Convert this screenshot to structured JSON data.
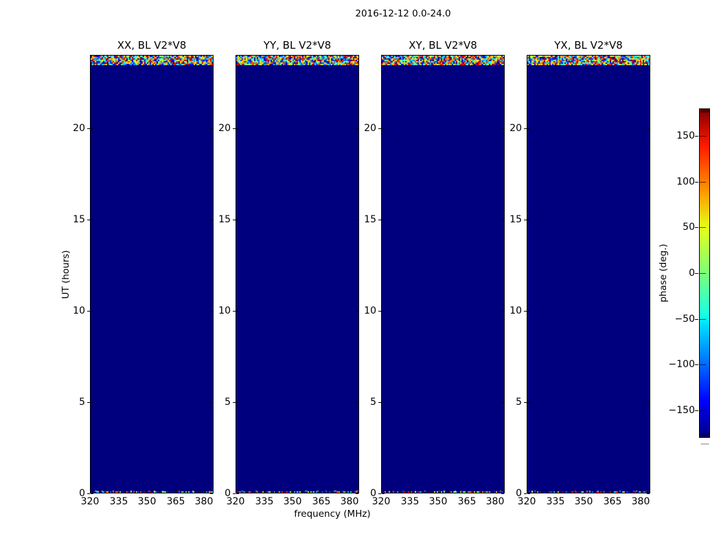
{
  "figure": {
    "suptitle": "2016-12-12 0.0-24.0",
    "background": "#ffffff"
  },
  "chart_data": {
    "type": "heatmap",
    "title": "2016-12-12 0.0-24.0",
    "panels": [
      {
        "title": "XX, BL V2*V8"
      },
      {
        "title": "YY, BL V2*V8"
      },
      {
        "title": "XY, BL V2*V8"
      },
      {
        "title": "YX, BL V2*V8"
      }
    ],
    "xlabel": "frequency (MHz)",
    "ylabel": "UT (hours)",
    "x_range_mhz": [
      320,
      385
    ],
    "x_ticks": [
      {
        "value": 320,
        "label": "320"
      },
      {
        "value": 335,
        "label": "335"
      },
      {
        "value": 350,
        "label": "350"
      },
      {
        "value": 365,
        "label": "365"
      },
      {
        "value": 380,
        "label": "380"
      }
    ],
    "x_minor_step_mhz": 5,
    "y_range_hours": [
      0,
      24
    ],
    "y_ticks": [
      {
        "value": 0,
        "label": "0"
      },
      {
        "value": 5,
        "label": "5"
      },
      {
        "value": 10,
        "label": "10"
      },
      {
        "value": 15,
        "label": "15"
      },
      {
        "value": 20,
        "label": "20"
      }
    ],
    "colorbar": {
      "label": "phase (deg.)",
      "range_deg": [
        -180,
        180
      ],
      "ticks": [
        {
          "value": 150,
          "label": "150"
        },
        {
          "value": 100,
          "label": "100"
        },
        {
          "value": 50,
          "label": "50"
        },
        {
          "value": 0,
          "label": "0"
        },
        {
          "value": -50,
          "label": "−50"
        },
        {
          "value": -100,
          "label": "−100"
        },
        {
          "value": -150,
          "label": "−150"
        }
      ],
      "colormap": "jet"
    },
    "data_description": {
      "body_phase_deg": -180,
      "body_color": "#00007f",
      "top_noise_band_hours": [
        23.4,
        24.0
      ],
      "bottom_noise_row_hours": [
        0.0,
        0.1
      ],
      "noise": "random phase values spanning the full −180°..+180° jet colour range"
    }
  }
}
